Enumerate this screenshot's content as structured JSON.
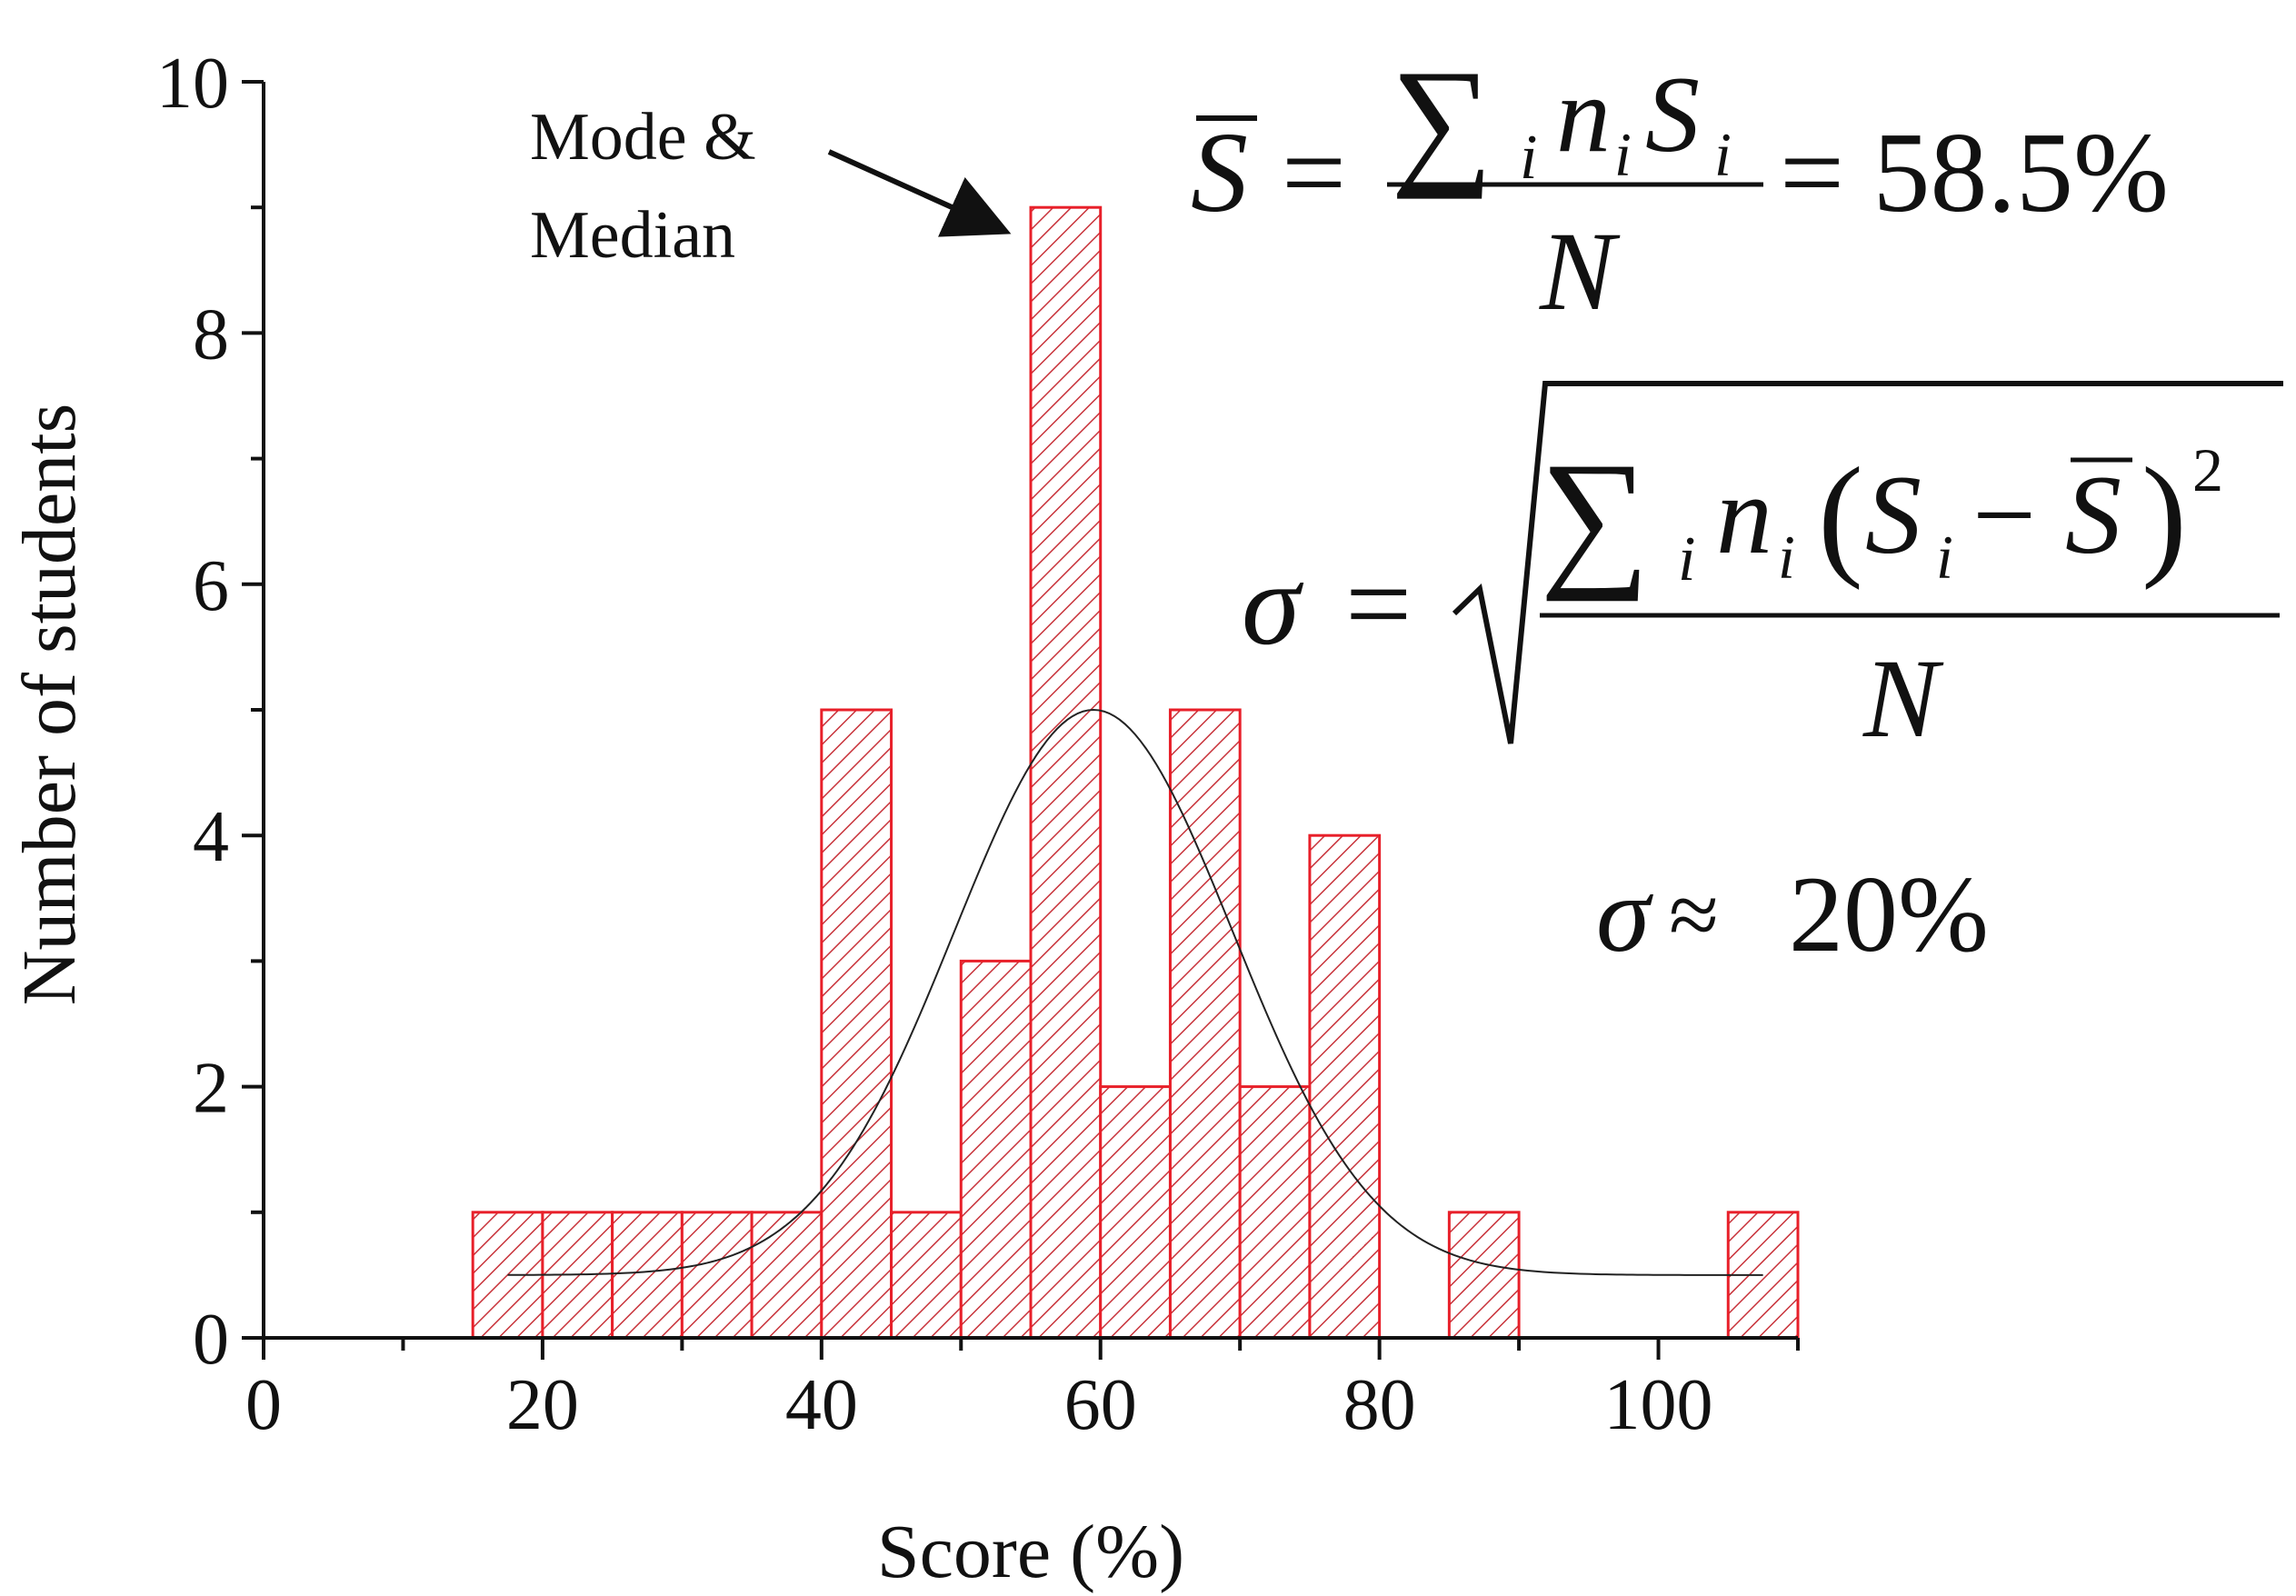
{
  "chart_data": {
    "type": "bar",
    "title": "",
    "xlabel": "Score (%)",
    "ylabel": "Number of students",
    "xlim": [
      0,
      110
    ],
    "ylim": [
      0,
      10
    ],
    "x_ticks": [
      0,
      20,
      40,
      60,
      80,
      100
    ],
    "y_ticks": [
      0,
      2,
      4,
      6,
      8,
      10
    ],
    "bin_width": 5,
    "bins": [
      {
        "start": 15,
        "count": 1
      },
      {
        "start": 20,
        "count": 1
      },
      {
        "start": 25,
        "count": 1
      },
      {
        "start": 30,
        "count": 1
      },
      {
        "start": 35,
        "count": 1
      },
      {
        "start": 40,
        "count": 5
      },
      {
        "start": 45,
        "count": 1
      },
      {
        "start": 50,
        "count": 3
      },
      {
        "start": 55,
        "count": 9
      },
      {
        "start": 60,
        "count": 2
      },
      {
        "start": 65,
        "count": 5
      },
      {
        "start": 70,
        "count": 2
      },
      {
        "start": 75,
        "count": 4
      },
      {
        "start": 80,
        "count": 0
      },
      {
        "start": 85,
        "count": 1
      },
      {
        "start": 90,
        "count": 0
      },
      {
        "start": 95,
        "count": 0
      },
      {
        "start": 100,
        "count": 0
      },
      {
        "start": 105,
        "count": 1
      }
    ],
    "fit_curve": {
      "type": "gaussian",
      "baseline": 0.5,
      "peak": 5.0,
      "center": 59.5,
      "sigma": 10,
      "x_range": [
        17.5,
        107.5
      ]
    },
    "bar_edge_color": "#e8202a",
    "bar_fill_color": "#ffffff",
    "hatch_color": "#c8323a",
    "curve_color": "#222222",
    "grid": false,
    "annotations": {
      "mode_median": [
        "Mode &",
        "Median"
      ],
      "mean_value": "= 58.5%",
      "sigma_value": "20%"
    }
  }
}
